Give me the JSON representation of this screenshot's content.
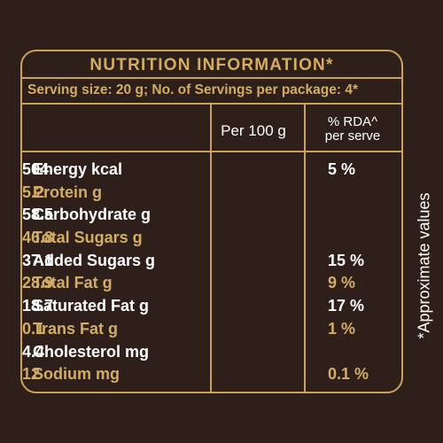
{
  "title": "NUTRITION INFORMATION*",
  "serving": "Serving size: 20 g; No. of Servings per package: 4*",
  "headers": {
    "per100": "Per 100 g",
    "rda_line1": "% RDA^",
    "rda_line2": "per serve"
  },
  "rows": [
    {
      "name": "Energy kcal",
      "per100": "504",
      "rda": "5 %",
      "color": "#ffffff"
    },
    {
      "name": "Protein g",
      "per100": "5.2",
      "rda": "",
      "color": "#d3ad66"
    },
    {
      "name": "Carbohydrate g",
      "per100": "58.5",
      "rda": "",
      "color": "#ffffff"
    },
    {
      "name": "Total Sugars g",
      "per100": "46.8",
      "rda": "",
      "color": "#d3ad66"
    },
    {
      "name": "Added Sugars g",
      "per100": "37.1",
      "rda": "15 %",
      "color": "#ffffff"
    },
    {
      "name": "Total Fat g",
      "per100": "28.9",
      "rda": "9 %",
      "color": "#d3ad66"
    },
    {
      "name": "Saturated Fat g",
      "per100": "18.7",
      "rda": "17 %",
      "color": "#ffffff"
    },
    {
      "name": "Trans Fat g",
      "per100": "0.1",
      "rda": "1 %",
      "color": "#d3ad66"
    },
    {
      "name": "Cholesterol mg",
      "per100": "4.4",
      "rda": "",
      "color": "#ffffff"
    },
    {
      "name": "Sodium mg",
      "per100": "12",
      "rda": "0.1 %",
      "color": "#d3ad66"
    }
  ],
  "side_note": "*Approximate values",
  "colors": {
    "background": "#2f1f1a",
    "accent": "#c9a35d",
    "text": "#ffffff"
  }
}
